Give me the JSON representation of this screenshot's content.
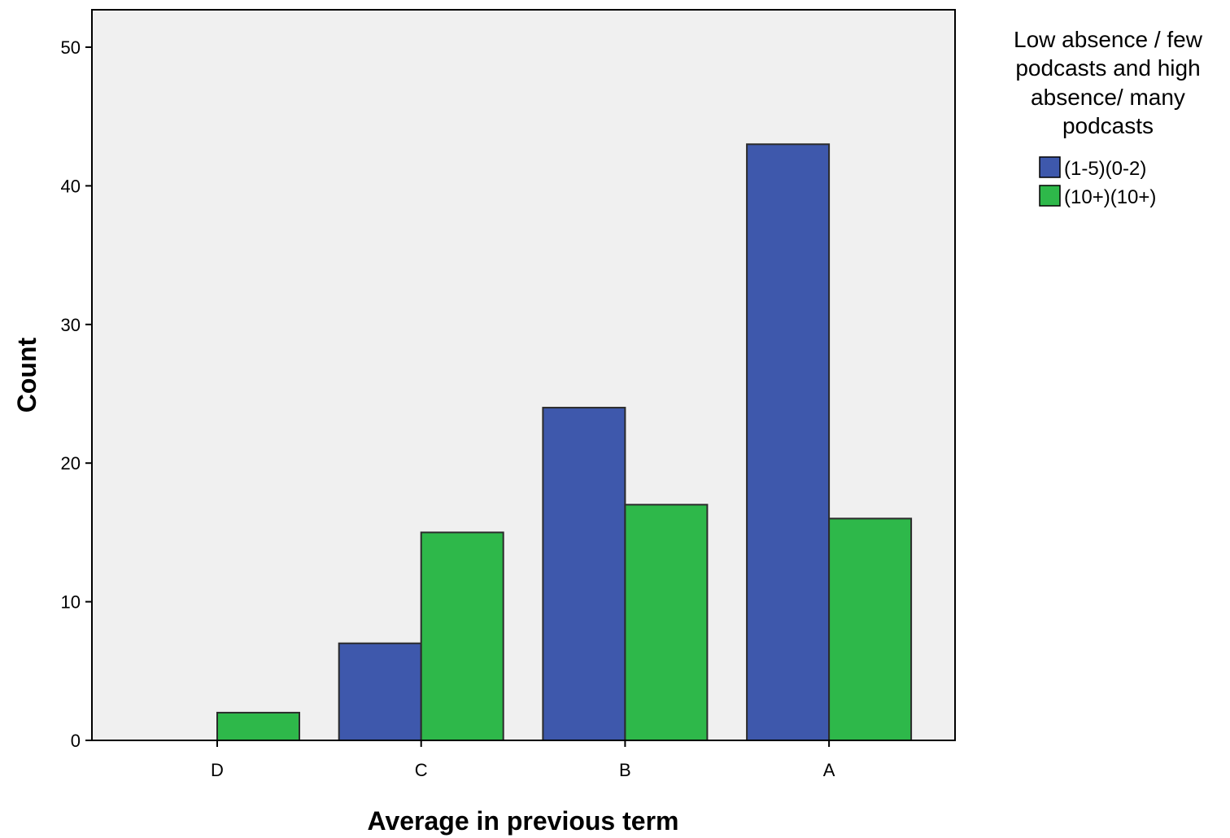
{
  "chart_data": {
    "type": "bar",
    "categories": [
      "D",
      "C",
      "B",
      "A"
    ],
    "series": [
      {
        "name": "(1-5)(0-2)",
        "values": [
          0,
          7,
          24,
          43
        ],
        "color": "#3e58ac"
      },
      {
        "name": "(10+)(10+)",
        "values": [
          2,
          15,
          17,
          16
        ],
        "color": "#2eb84a"
      }
    ],
    "title": "",
    "xlabel": "Average in previous term",
    "ylabel": "Count",
    "ylim": [
      0,
      52.7
    ],
    "yticks": [
      0,
      10,
      20,
      30,
      40,
      50
    ],
    "grid": false,
    "legend": {
      "title_lines": [
        "Low absence / few",
        "podcasts and high",
        "absence/ many",
        "podcasts"
      ],
      "placement": "right"
    },
    "plot_background": "#f0f0f0"
  }
}
